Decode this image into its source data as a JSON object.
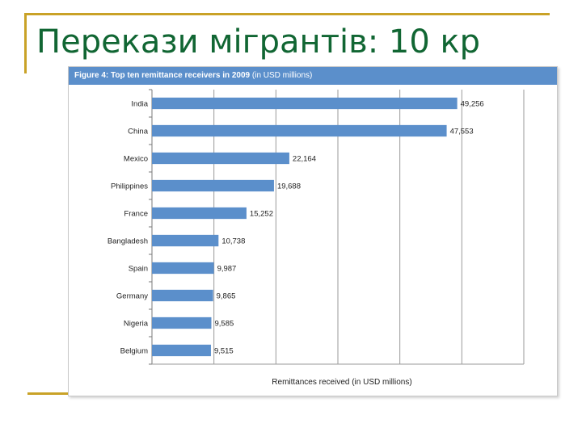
{
  "slide": {
    "title": "Перекази мігрантів: 10 кр"
  },
  "chart_data": {
    "type": "bar",
    "orientation": "horizontal",
    "title_bold": "Figure 4: Top ten remittance receivers in 2009",
    "title_rest": " (in USD millions)",
    "xlabel": "Remittances received (in USD millions)",
    "ylabel": "",
    "categories": [
      "India",
      "China",
      "Mexico",
      "Philippines",
      "France",
      "Bangladesh",
      "Spain",
      "Germany",
      "Nigeria",
      "Belgium"
    ],
    "values": [
      49256,
      47553,
      22164,
      19688,
      15252,
      10738,
      9987,
      9865,
      9585,
      9515
    ],
    "value_labels": [
      "49,256",
      "47,553",
      "22,164",
      "19,688",
      "15,252",
      "10,738",
      "9,987",
      "9,865",
      "9,585",
      "9,515"
    ],
    "xlim": [
      0,
      60000
    ],
    "grid_step": 10000,
    "grid": true,
    "legend": "none",
    "colors": {
      "bar": "#5b8fcb",
      "header": "#5b8fcb",
      "title": "#116633",
      "accent": "#c9a227"
    }
  }
}
